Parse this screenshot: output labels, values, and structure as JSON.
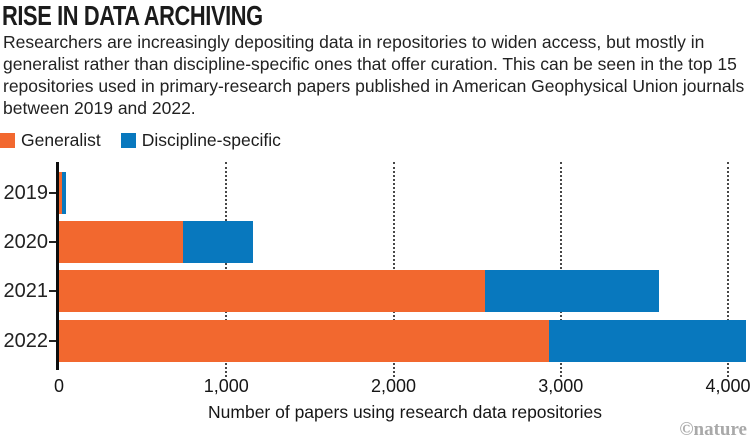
{
  "header": {
    "title": "RISE IN DATA ARCHIVING",
    "description": "Researchers are increasingly depositing data in repositories to widen access, but mostly in generalist rather than discipline-specific ones that offer curation. This can be seen in the top 15 repositories used in primary-research papers published in American Geophysical Union journals between 2019 and 2022."
  },
  "legend": [
    {
      "label": "Generalist",
      "color": "#F2682F"
    },
    {
      "label": "Discipline-specific",
      "color": "#0878BE"
    }
  ],
  "chart_data": {
    "type": "bar",
    "orientation": "horizontal",
    "stacked": true,
    "categories": [
      "2019",
      "2020",
      "2021",
      "2022"
    ],
    "series": [
      {
        "name": "Generalist",
        "color": "#F2682F",
        "values": [
          15,
          740,
          2550,
          2930
        ]
      },
      {
        "name": "Discipline-specific",
        "color": "#0878BE",
        "values": [
          25,
          420,
          1040,
          1180
        ]
      }
    ],
    "totals": [
      40,
      1160,
      3590,
      4110
    ],
    "xlabel": "Number of papers using research data repositories",
    "x_ticks": [
      {
        "label": "0",
        "value": 0
      },
      {
        "label": "1,000",
        "value": 1000
      },
      {
        "label": "2,000",
        "value": 2000
      },
      {
        "label": "3,000",
        "value": 3000
      },
      {
        "label": "4,000",
        "value": 4000
      }
    ],
    "xlim": [
      0,
      4140
    ],
    "grid": "dotted-vertical",
    "legend_position": "top-left"
  },
  "footer": {
    "credit": "©nature"
  }
}
